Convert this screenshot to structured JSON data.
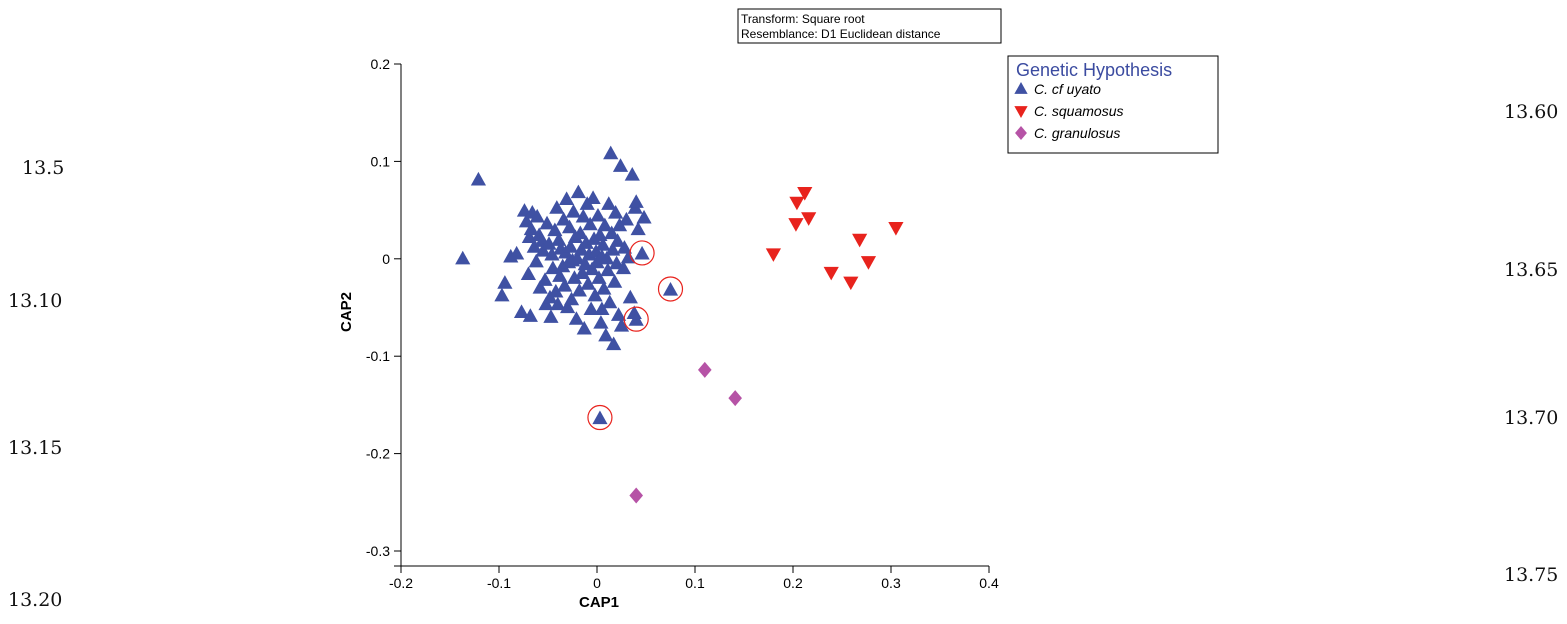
{
  "page": {
    "left_margin_numbers": [
      "13.5",
      "13.10",
      "13.15",
      "13.20"
    ],
    "right_margin_numbers": [
      "13.60",
      "13.65",
      "13.70",
      "13.75"
    ]
  },
  "chart_data": {
    "type": "scatter",
    "xlabel": "CAP1",
    "ylabel": "CAP2",
    "xlim": [
      -0.2,
      0.4
    ],
    "ylim": [
      -0.3,
      0.2
    ],
    "xticks": [
      -0.2,
      -0.1,
      0,
      0.1,
      0.2,
      0.3,
      0.4
    ],
    "yticks": [
      -0.3,
      -0.2,
      -0.1,
      0,
      0.1,
      0.2
    ],
    "xtick_labels": [
      "-0.2",
      "-0.1",
      "0",
      "0.1",
      "0.2",
      "0.3",
      "0.4"
    ],
    "ytick_labels": [
      "-0.3",
      "-0.2",
      "-0.1",
      "0",
      "0.1",
      "0.2"
    ],
    "grid": false,
    "annotation_box": [
      "Transform: Square root",
      "Resemblance: D1 Euclidean distance"
    ],
    "legend": {
      "title": "Genetic Hypothesis",
      "placement": "top-right"
    },
    "series": [
      {
        "name": "C. cf uyato",
        "marker": "triangle-up",
        "color": "#3f51a3",
        "points": [
          [
            -0.137,
            0.0
          ],
          [
            -0.121,
            0.081
          ],
          [
            -0.097,
            -0.038
          ],
          [
            -0.094,
            -0.025
          ],
          [
            -0.088,
            0.002
          ],
          [
            -0.082,
            0.005
          ],
          [
            -0.077,
            -0.055
          ],
          [
            -0.074,
            0.049
          ],
          [
            -0.072,
            0.038
          ],
          [
            -0.07,
            -0.016
          ],
          [
            -0.069,
            0.022
          ],
          [
            -0.068,
            -0.059
          ],
          [
            -0.067,
            0.03
          ],
          [
            -0.066,
            0.047
          ],
          [
            -0.064,
            0.012
          ],
          [
            -0.062,
            -0.003
          ],
          [
            -0.061,
            0.043
          ],
          [
            -0.059,
            0.024
          ],
          [
            -0.058,
            -0.03
          ],
          [
            -0.056,
            0.018
          ],
          [
            -0.055,
            0.008
          ],
          [
            -0.053,
            -0.022
          ],
          [
            -0.052,
            -0.047
          ],
          [
            -0.051,
            0.036
          ],
          [
            -0.049,
            0.015
          ],
          [
            -0.048,
            -0.04
          ],
          [
            -0.047,
            -0.06
          ],
          [
            -0.046,
            0.004
          ],
          [
            -0.045,
            -0.01
          ],
          [
            -0.043,
            0.029
          ],
          [
            -0.042,
            -0.034
          ],
          [
            -0.041,
            0.052
          ],
          [
            -0.04,
            -0.047
          ],
          [
            -0.039,
            0.019
          ],
          [
            -0.038,
            -0.018
          ],
          [
            -0.037,
            0.01
          ],
          [
            -0.035,
            -0.008
          ],
          [
            -0.034,
            0.04
          ],
          [
            -0.033,
            -0.028
          ],
          [
            -0.032,
            0.006
          ],
          [
            -0.031,
            0.061
          ],
          [
            -0.03,
            -0.05
          ],
          [
            -0.029,
            -0.004
          ],
          [
            -0.028,
            0.032
          ],
          [
            -0.027,
            0.012
          ],
          [
            -0.026,
            -0.042
          ],
          [
            -0.025,
            -0.002
          ],
          [
            -0.024,
            0.048
          ],
          [
            -0.023,
            -0.02
          ],
          [
            -0.022,
            0.022
          ],
          [
            -0.021,
            -0.062
          ],
          [
            -0.02,
            0.0
          ],
          [
            -0.019,
            0.068
          ],
          [
            -0.018,
            -0.033
          ],
          [
            -0.017,
            0.026
          ],
          [
            -0.016,
            0.009
          ],
          [
            -0.015,
            -0.015
          ],
          [
            -0.014,
            0.043
          ],
          [
            -0.013,
            -0.072
          ],
          [
            -0.012,
            -0.006
          ],
          [
            -0.011,
            0.016
          ],
          [
            -0.01,
            0.056
          ],
          [
            -0.009,
            -0.026
          ],
          [
            -0.008,
            0.004
          ],
          [
            -0.007,
            0.035
          ],
          [
            -0.006,
            -0.052
          ],
          [
            -0.005,
            -0.011
          ],
          [
            -0.004,
            0.062
          ],
          [
            -0.003,
            0.02
          ],
          [
            -0.002,
            -0.038
          ],
          [
            -0.001,
            0.007
          ],
          [
            0.0,
            -0.004
          ],
          [
            0.001,
            0.044
          ],
          [
            0.002,
            -0.02
          ],
          [
            0.003,
            0.024
          ],
          [
            0.004,
            -0.066
          ],
          [
            0.005,
            0.002
          ],
          [
            0.006,
            0.014
          ],
          [
            0.007,
            -0.031
          ],
          [
            0.008,
            0.034
          ],
          [
            0.009,
            -0.079
          ],
          [
            0.01,
            0.0
          ],
          [
            0.011,
            -0.012
          ],
          [
            0.012,
            0.056
          ],
          [
            0.013,
            -0.045
          ],
          [
            0.014,
            0.108
          ],
          [
            0.015,
            0.026
          ],
          [
            0.016,
            0.009
          ],
          [
            0.017,
            -0.088
          ],
          [
            0.018,
            -0.024
          ],
          [
            0.019,
            0.047
          ],
          [
            0.02,
            -0.005
          ],
          [
            0.021,
            0.018
          ],
          [
            0.022,
            -0.058
          ],
          [
            0.023,
            0.034
          ],
          [
            0.024,
            0.095
          ],
          [
            0.025,
            -0.069
          ],
          [
            0.027,
            -0.01
          ],
          [
            0.028,
            0.011
          ],
          [
            0.03,
            0.04
          ],
          [
            0.032,
            0.001
          ],
          [
            0.034,
            -0.04
          ],
          [
            0.036,
            0.086
          ],
          [
            0.038,
            -0.056
          ],
          [
            0.039,
            0.052
          ],
          [
            0.04,
            0.058
          ],
          [
            0.042,
            0.03
          ],
          [
            0.048,
            0.042
          ],
          [
            0.005,
            -0.052
          ],
          [
            0.046,
            0.005
          ],
          [
            0.075,
            -0.032
          ],
          [
            0.04,
            -0.063
          ],
          [
            0.003,
            -0.164
          ]
        ]
      },
      {
        "name": "C. squamosus",
        "marker": "triangle-down",
        "color": "#e8231d",
        "points": [
          [
            0.18,
            0.005
          ],
          [
            0.203,
            0.036
          ],
          [
            0.204,
            0.058
          ],
          [
            0.212,
            0.068
          ],
          [
            0.216,
            0.042
          ],
          [
            0.239,
            -0.014
          ],
          [
            0.259,
            -0.024
          ],
          [
            0.268,
            0.02
          ],
          [
            0.277,
            -0.003
          ],
          [
            0.305,
            0.032
          ]
        ]
      },
      {
        "name": "C. granulosus",
        "marker": "diamond",
        "color": "#b653a6",
        "points": [
          [
            0.11,
            -0.114
          ],
          [
            0.141,
            -0.143
          ],
          [
            0.04,
            -0.243
          ]
        ]
      }
    ],
    "highlighted_points": [
      [
        0.046,
        0.005
      ],
      [
        0.075,
        -0.032
      ],
      [
        0.04,
        -0.063
      ],
      [
        0.003,
        -0.164
      ]
    ],
    "highlight_color": "#e8231d"
  }
}
